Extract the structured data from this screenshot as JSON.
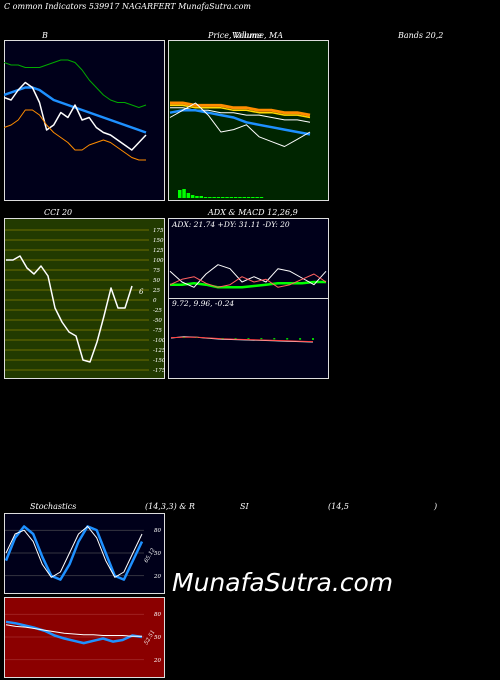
{
  "header": {
    "text": "C                    ommon  Indicators 539917 NAGARFERT MunafaSutra.com"
  },
  "titles": {
    "bb": "B",
    "price": "Price,  Volume,  MA",
    "price_overlap": "Volume",
    "bands": "Bands 20,2",
    "cci": "CCI 20",
    "adx": "ADX  & MACD 12,26,9",
    "stoch_left": "Stochastics",
    "stoch_mid": "(14,3,3) & R",
    "stoch_si": "SI",
    "stoch_right": "(14,5",
    "stoch_paren": ")"
  },
  "watermark": "MunafaSutra.com",
  "colors": {
    "navy": "#00001a",
    "green": "#002500",
    "olive": "#223a00",
    "red": "#8b0000"
  },
  "chart_data": [
    {
      "type": "line",
      "name_in_image": "B",
      "series": [
        {
          "color": "#00aa00",
          "values": [
            83,
            82,
            82,
            81,
            81,
            81,
            82,
            83,
            84,
            84,
            83,
            80,
            76,
            73,
            70,
            68,
            67,
            67,
            66,
            65,
            66
          ]
        },
        {
          "color": "#1e90ff",
          "values": [
            70,
            71,
            72,
            73,
            73,
            72,
            70,
            68,
            67,
            66,
            65,
            64,
            63,
            62,
            61,
            60,
            59,
            58,
            57,
            56,
            55
          ]
        },
        {
          "color": "#ffffff",
          "values": [
            69,
            68,
            72,
            75,
            73,
            67,
            56,
            58,
            63,
            61,
            66,
            60,
            61,
            57,
            55,
            54,
            52,
            50,
            48,
            51,
            54
          ]
        },
        {
          "color": "#ff8c00",
          "values": [
            57,
            58,
            60,
            64,
            64,
            62,
            58,
            55,
            53,
            51,
            48,
            48,
            50,
            51,
            52,
            51,
            49,
            47,
            45,
            44,
            44
          ]
        }
      ]
    },
    {
      "type": "line",
      "name_in_image": "Price, Volume, MA",
      "series": [
        {
          "color": "#ff8c00",
          "values": [
            66,
            66,
            65,
            65,
            65,
            64,
            64,
            63,
            63,
            62,
            62,
            61
          ]
        },
        {
          "color": "#ffd700",
          "values": [
            65,
            65,
            64,
            64,
            64,
            63,
            63,
            62,
            62,
            61,
            61,
            60
          ]
        },
        {
          "color": "#ffffff",
          "values": [
            64,
            64,
            63,
            63,
            62,
            62,
            61,
            61,
            60,
            59,
            59,
            58
          ]
        },
        {
          "color": "#1e90ff",
          "values": [
            62,
            63,
            63,
            62,
            61,
            60,
            58,
            57,
            56,
            55,
            54,
            53
          ]
        },
        {
          "color": "#ffffff",
          "values": [
            60,
            63,
            66,
            61,
            54,
            55,
            57,
            52,
            50,
            48,
            51,
            54
          ]
        }
      ],
      "volume": [
        8,
        9,
        5,
        3,
        2,
        2,
        1,
        1,
        1,
        1,
        1,
        1,
        1,
        1,
        1,
        1,
        1,
        1,
        1,
        1
      ]
    },
    {
      "type": "line",
      "name_in_image": "CCI 20",
      "yticks": [
        "175",
        "150",
        "125",
        "100",
        "75",
        "50",
        "25",
        "0",
        "-25",
        "-50",
        "-75",
        "-100",
        "-125",
        "-150",
        "-175"
      ],
      "ylim": [
        -175,
        175
      ],
      "values": [
        100,
        100,
        110,
        80,
        65,
        85,
        60,
        -20,
        -55,
        -80,
        -90,
        -150,
        -155,
        -105,
        -40,
        30,
        -20,
        -20,
        35
      ],
      "last_label": "6"
    },
    {
      "type": "line",
      "name_in_image": "ADX & MACD",
      "adx_label": "ADX: 21.74  +DY: 31.11 -DY: 20",
      "series": [
        {
          "color": "#00ff00",
          "values": [
            20,
            20,
            21,
            20,
            18,
            18,
            18,
            19,
            20,
            21,
            21,
            21,
            22,
            22
          ]
        },
        {
          "color": "#ffffff",
          "values": [
            30,
            22,
            18,
            28,
            35,
            32,
            22,
            26,
            22,
            32,
            30,
            25,
            20,
            30
          ]
        },
        {
          "color": "#ff6060",
          "values": [
            20,
            24,
            26,
            21,
            18,
            20,
            26,
            22,
            24,
            18,
            20,
            24,
            28,
            22
          ]
        }
      ],
      "macd_label": "9.72,  9.96,  -0.24"
    },
    {
      "type": "line",
      "name_in_image": "Stochastics",
      "yticks": [
        "80",
        "50",
        "20"
      ],
      "ylim": [
        0,
        100
      ],
      "series": [
        {
          "color": "#1e90ff",
          "values": [
            40,
            70,
            85,
            75,
            45,
            20,
            15,
            35,
            65,
            85,
            80,
            50,
            20,
            15,
            40,
            65
          ]
        },
        {
          "color": "#ffffff",
          "values": [
            50,
            75,
            80,
            65,
            35,
            18,
            25,
            50,
            75,
            85,
            70,
            40,
            18,
            25,
            50,
            75
          ]
        }
      ],
      "last_label": "65.12"
    },
    {
      "type": "line",
      "name_in_image": "RSI",
      "yticks": [
        "80",
        "50",
        "20"
      ],
      "ylim": [
        0,
        100
      ],
      "series": [
        {
          "color": "#1e90ff",
          "values": [
            70,
            68,
            65,
            62,
            58,
            52,
            48,
            45,
            42,
            45,
            48,
            44,
            46,
            52,
            50
          ]
        },
        {
          "color": "#ffffff",
          "values": [
            66,
            64,
            63,
            61,
            59,
            57,
            55,
            54,
            53,
            53,
            52,
            52,
            52,
            51,
            51
          ]
        }
      ],
      "last_label": "52.51"
    }
  ]
}
